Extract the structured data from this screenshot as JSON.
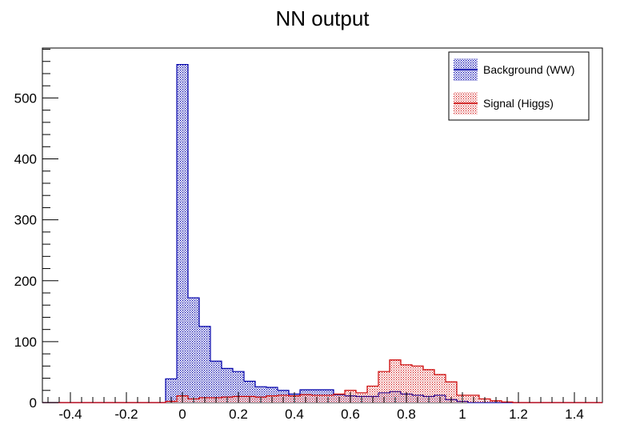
{
  "chart_data": {
    "type": "histogram",
    "title": "NN output",
    "xlabel": "",
    "ylabel": "",
    "xlim": [
      -0.5,
      1.5
    ],
    "ylim": [
      0,
      582
    ],
    "x_ticks": [
      -0.4,
      -0.2,
      0,
      0.2,
      0.4,
      0.6,
      0.8,
      1,
      1.2,
      1.4
    ],
    "x_tick_labels": [
      "-0.4",
      "-0.2",
      "0",
      "0.2",
      "0.4",
      "0.6",
      "0.8",
      "1",
      "1.2",
      "1.4"
    ],
    "y_ticks": [
      0,
      100,
      200,
      300,
      400,
      500
    ],
    "y_tick_labels": [
      "0",
      "100",
      "200",
      "300",
      "400",
      "500"
    ],
    "grid": false,
    "legend_position": "top-right",
    "bin_edges": [
      -0.5,
      -0.46,
      -0.42,
      -0.38,
      -0.34,
      -0.3,
      -0.26,
      -0.22,
      -0.18,
      -0.14,
      -0.1,
      -0.06,
      -0.02,
      0.02,
      0.06,
      0.1,
      0.14,
      0.18,
      0.22,
      0.26,
      0.3,
      0.34,
      0.38,
      0.42,
      0.46,
      0.5,
      0.54,
      0.58,
      0.62,
      0.66,
      0.7,
      0.74,
      0.78,
      0.82,
      0.86,
      0.9,
      0.94,
      0.98,
      1.02,
      1.06,
      1.1,
      1.14,
      1.18,
      1.22,
      1.26,
      1.3,
      1.34,
      1.38,
      1.42,
      1.46,
      1.5
    ],
    "series": [
      {
        "name": "Background (WW)",
        "color": "#0000aa",
        "fill_pattern": "dots",
        "values": [
          0,
          0,
          0,
          0,
          0,
          0,
          0,
          0,
          0,
          0,
          0,
          39,
          555,
          172,
          125,
          68,
          56,
          51,
          35,
          26,
          25,
          20,
          14,
          21,
          21,
          21,
          13,
          11,
          10,
          10,
          16,
          18,
          14,
          12,
          10,
          12,
          5,
          2,
          0,
          0,
          0,
          0,
          0,
          0,
          0,
          0,
          0,
          0,
          0,
          0
        ]
      },
      {
        "name": "Signal (Higgs)",
        "color": "#cc0000",
        "fill_pattern": "dots",
        "values": [
          0,
          0,
          0,
          0,
          0,
          0,
          0,
          0,
          0,
          0,
          0,
          2,
          11,
          6,
          8,
          8,
          9,
          10,
          10,
          9,
          11,
          12,
          11,
          13,
          12,
          12,
          14,
          20,
          16,
          27,
          51,
          70,
          62,
          60,
          54,
          46,
          34,
          12,
          12,
          6,
          3,
          1,
          0,
          0,
          0,
          0,
          0,
          0,
          0,
          0
        ]
      }
    ]
  }
}
